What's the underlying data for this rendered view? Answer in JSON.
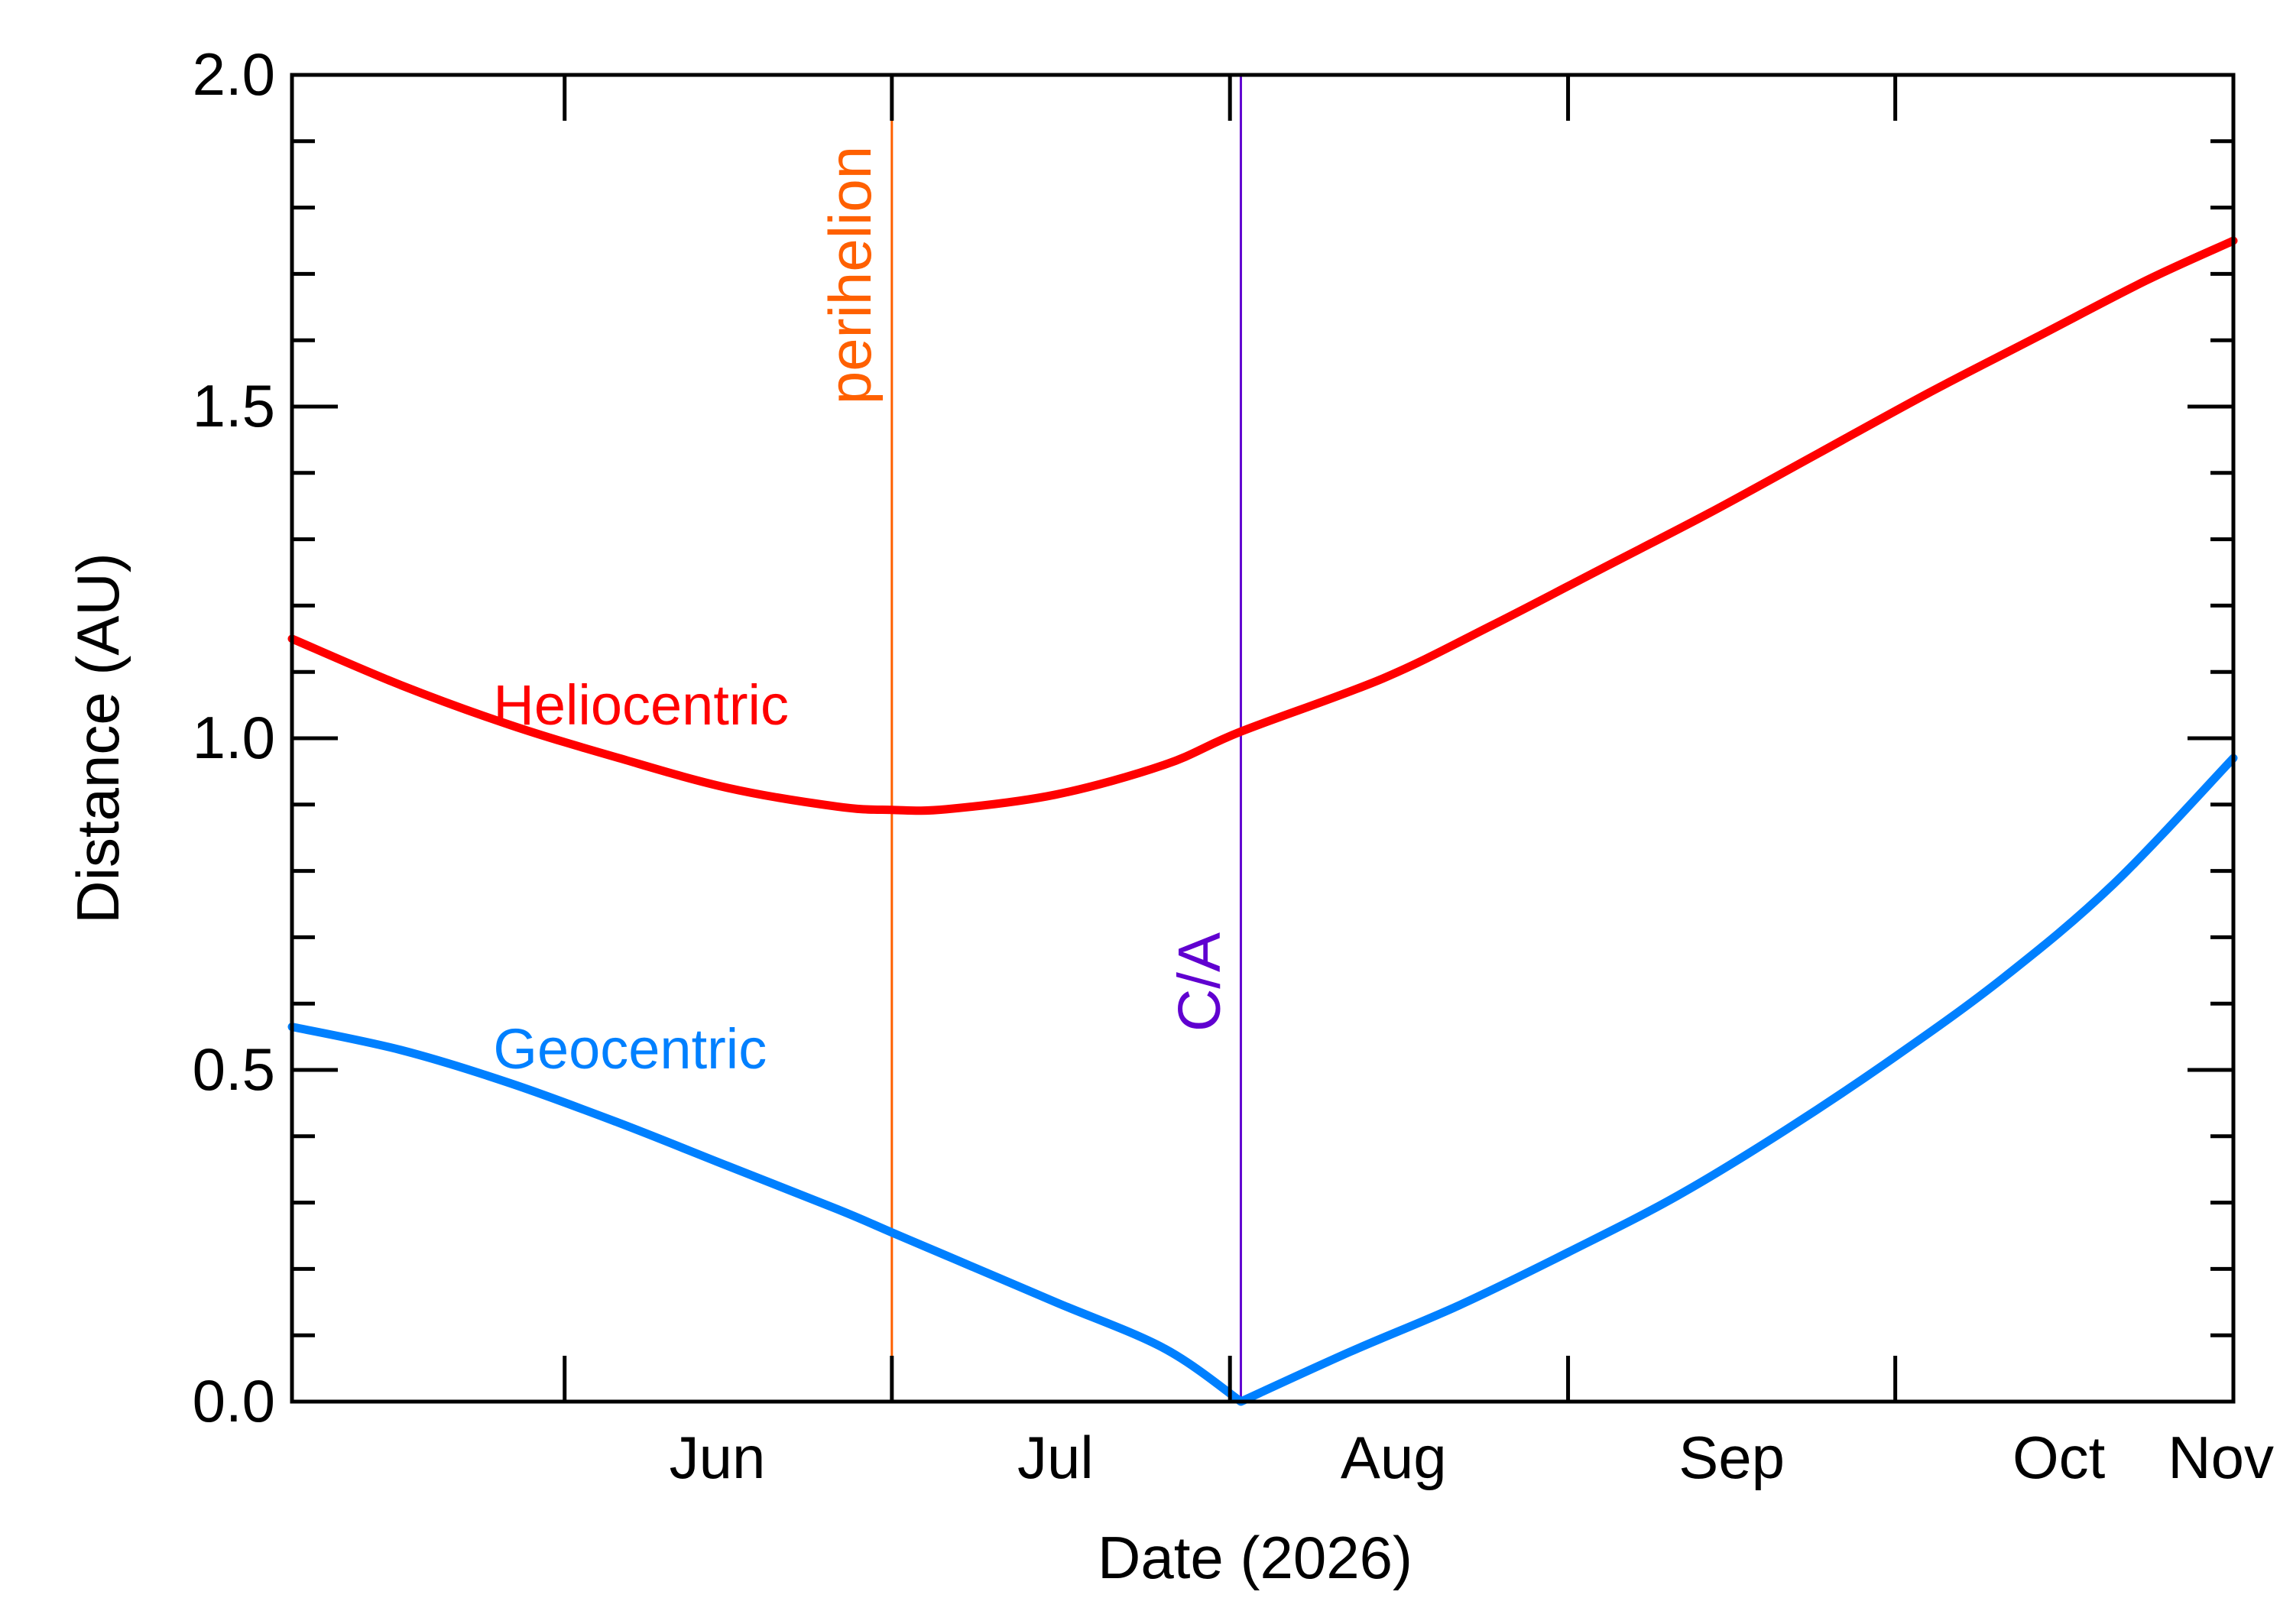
{
  "chart_data": {
    "type": "line",
    "title": "",
    "xlabel": "Date (2026)",
    "ylabel": "Distance (AU)",
    "xlim": [
      "2026-05-07",
      "2026-11-01"
    ],
    "ylim": [
      0.0,
      2.0
    ],
    "x_ticks": [
      {
        "label": "Jun",
        "date": "2026-06-01"
      },
      {
        "label": "Jul",
        "date": "2026-07-01"
      },
      {
        "label": "Aug",
        "date": "2026-08-01"
      },
      {
        "label": "Sep",
        "date": "2026-09-01"
      },
      {
        "label": "Oct",
        "date": "2026-10-01"
      },
      {
        "label": "Nov",
        "date": "2026-11-01"
      }
    ],
    "x_label_positions": [
      "2026-06-15",
      "2026-07-16",
      "2026-08-16",
      "2026-09-16",
      "2026-10-16",
      "2026-11-01"
    ],
    "y_major_ticks": [
      {
        "value": 0.0,
        "label": "0.0"
      },
      {
        "value": 0.5,
        "label": "0.5"
      },
      {
        "value": 1.0,
        "label": "1.0"
      },
      {
        "value": 1.5,
        "label": "1.5"
      },
      {
        "value": 2.0,
        "label": "2.0"
      }
    ],
    "y_minor_step": 0.1,
    "grid": false,
    "series": [
      {
        "name": "Heliocentric",
        "color": "#ff0000",
        "x": [
          "2026-05-07",
          "2026-05-17",
          "2026-05-27",
          "2026-06-06",
          "2026-06-16",
          "2026-06-26",
          "2026-07-01",
          "2026-07-06",
          "2026-07-16",
          "2026-07-26",
          "2026-08-02",
          "2026-08-15",
          "2026-08-25",
          "2026-09-04",
          "2026-09-14",
          "2026-09-24",
          "2026-10-04",
          "2026-10-14",
          "2026-10-24",
          "2026-11-01"
        ],
        "y": [
          1.15,
          1.08,
          1.02,
          0.97,
          0.925,
          0.897,
          0.892,
          0.893,
          0.915,
          0.96,
          1.01,
          1.09,
          1.17,
          1.255,
          1.34,
          1.43,
          1.52,
          1.605,
          1.69,
          1.75
        ]
      },
      {
        "name": "Geocentric",
        "color": "#0080ff",
        "x": [
          "2026-05-07",
          "2026-05-17",
          "2026-05-27",
          "2026-06-06",
          "2026-06-16",
          "2026-06-26",
          "2026-07-01",
          "2026-07-06",
          "2026-07-16",
          "2026-07-26",
          "2026-08-02",
          "2026-08-12",
          "2026-08-22",
          "2026-09-01",
          "2026-09-11",
          "2026-09-21",
          "2026-10-01",
          "2026-10-11",
          "2026-10-21",
          "2026-11-01"
        ],
        "y": [
          0.565,
          0.53,
          0.48,
          0.42,
          0.355,
          0.29,
          0.255,
          0.22,
          0.15,
          0.08,
          0.0,
          0.075,
          0.145,
          0.225,
          0.31,
          0.41,
          0.52,
          0.64,
          0.78,
          0.97
        ]
      }
    ],
    "vertical_markers": [
      {
        "label": "perihelion",
        "date": "2026-07-01",
        "color": "#ff6000"
      },
      {
        "label": "C/A",
        "date": "2026-08-02",
        "color": "#6000d0"
      }
    ],
    "annotations": [
      {
        "text": "Heliocentric",
        "color": "#ff0000",
        "x": "2026-05-27",
        "y": 1.02
      },
      {
        "text": "Geocentric",
        "color": "#0080ff",
        "x": "2026-05-27",
        "y": 0.48
      }
    ]
  }
}
